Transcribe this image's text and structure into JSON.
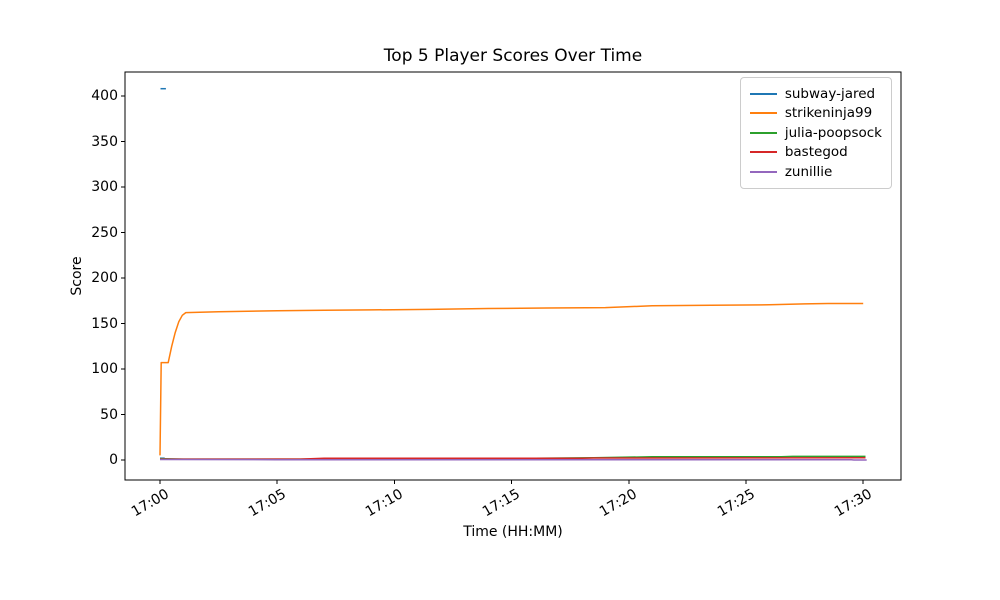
{
  "title": "Top 5 Player Scores Over Time",
  "xlabel": "Time (HH:MM)",
  "ylabel": "Score",
  "axis_color": "#000000",
  "legend_border_color": "#cccccc",
  "chart_data": {
    "type": "line",
    "title": "Top 5 Player Scores Over Time",
    "xlabel": "Time (HH:MM)",
    "ylabel": "Score",
    "grid": false,
    "legend_position": "upper right",
    "x_axis": {
      "unit": "minutes after 17:00",
      "tick_minutes": [
        0,
        5,
        10,
        15,
        20,
        25,
        30
      ],
      "tick_labels": [
        "17:00",
        "17:05",
        "17:10",
        "17:15",
        "17:20",
        "17:25",
        "17:30"
      ],
      "range_minutes": [
        -1.5,
        31.6
      ]
    },
    "y_axis": {
      "tick_values": [
        0,
        50,
        100,
        150,
        200,
        250,
        300,
        350,
        400
      ],
      "tick_labels": [
        "0",
        "50",
        "100",
        "150",
        "200",
        "250",
        "300",
        "350",
        "400"
      ],
      "range": [
        -20,
        428
      ]
    },
    "series": [
      {
        "name": "subway-jared",
        "color": "#1f77b4",
        "segments": [
          [
            [
              0.0,
              2
            ],
            [
              0.2,
              2
            ]
          ],
          [
            [
              0.02,
              408
            ],
            [
              0.25,
              408
            ]
          ]
        ]
      },
      {
        "name": "strikeninja99",
        "color": "#ff7f0e",
        "segments": [
          [
            [
              0.0,
              5
            ],
            [
              0.05,
              107
            ],
            [
              0.35,
              107
            ],
            [
              0.5,
              125
            ],
            [
              0.65,
              140
            ],
            [
              0.8,
              152
            ],
            [
              0.95,
              159
            ],
            [
              1.1,
              162
            ],
            [
              2.5,
              163
            ],
            [
              5,
              164
            ],
            [
              7,
              164.5
            ],
            [
              9,
              165
            ],
            [
              11.5,
              165.5
            ],
            [
              14,
              166.5
            ],
            [
              16.5,
              167
            ],
            [
              19,
              167.5
            ],
            [
              21,
              169.5
            ],
            [
              23.5,
              170
            ],
            [
              26,
              170.5
            ],
            [
              27.5,
              171.5
            ],
            [
              28.5,
              172
            ],
            [
              30,
              172
            ]
          ]
        ]
      },
      {
        "name": "julia-poopsock",
        "color": "#2ca02c",
        "segments": [
          [
            [
              0,
              1.5
            ],
            [
              1,
              1
            ],
            [
              6,
              1
            ],
            [
              13,
              1.5
            ],
            [
              16,
              2
            ],
            [
              18.5,
              2.5
            ],
            [
              21,
              3.5
            ],
            [
              26.5,
              3.5
            ],
            [
              27,
              4
            ],
            [
              30.1,
              4
            ]
          ]
        ]
      },
      {
        "name": "bastegod",
        "color": "#d62728",
        "segments": [
          [
            [
              0,
              1
            ],
            [
              6,
              1
            ],
            [
              7,
              2
            ],
            [
              18,
              2
            ],
            [
              18.5,
              2.2
            ],
            [
              25,
              2.3
            ],
            [
              30.1,
              2.5
            ]
          ]
        ]
      },
      {
        "name": "zunillie",
        "color": "#9467bd",
        "segments": [
          [
            [
              0,
              0.5
            ],
            [
              5,
              0.3
            ],
            [
              29.5,
              0.3
            ],
            [
              29.6,
              0
            ],
            [
              30.15,
              0
            ]
          ]
        ]
      }
    ]
  }
}
